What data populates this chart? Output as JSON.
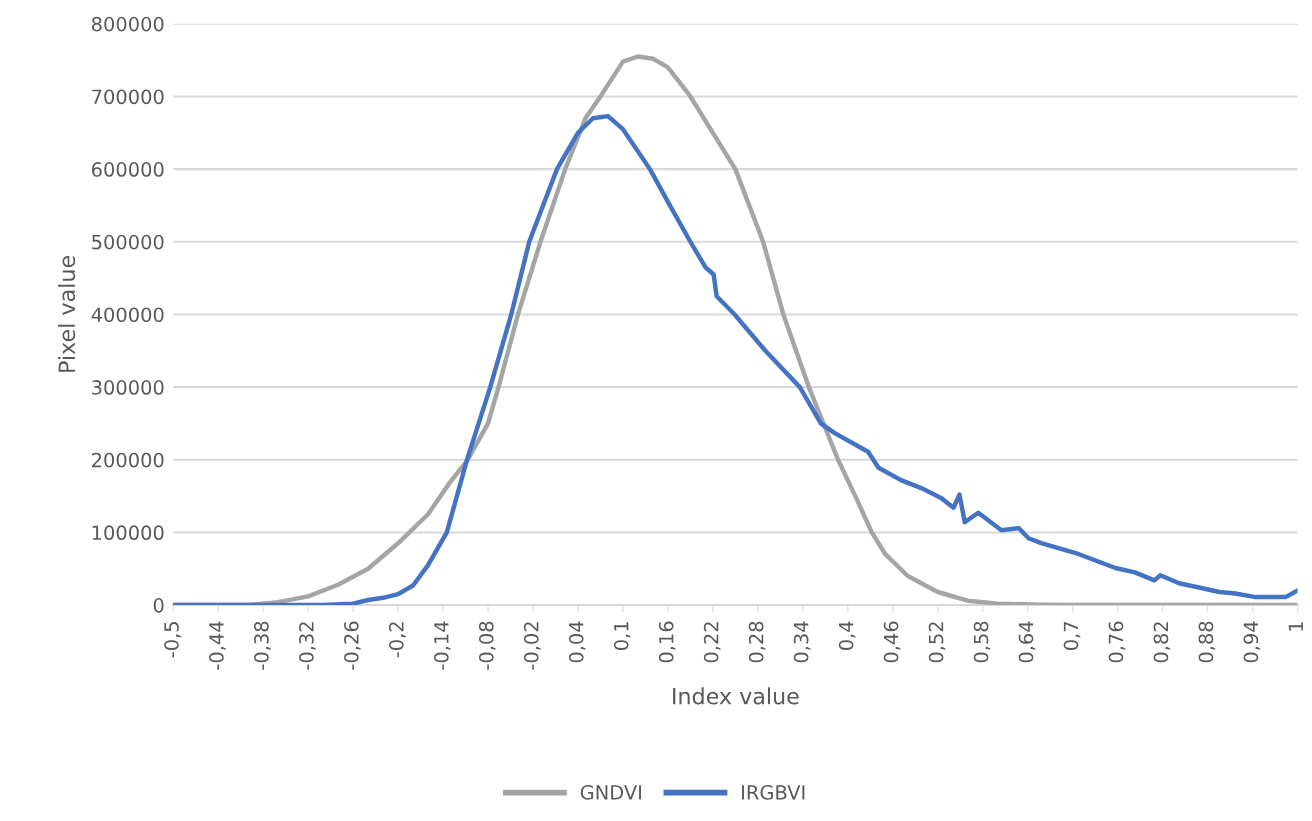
{
  "chart_data": {
    "type": "line",
    "xlabel": "Index value",
    "ylabel": "Pixel value",
    "xlim": [
      -0.5,
      1
    ],
    "ylim": [
      0,
      800000
    ],
    "xticks": [
      {
        "value": -0.5,
        "label": "-0,5"
      },
      {
        "value": -0.44,
        "label": "-0,44"
      },
      {
        "value": -0.38,
        "label": "-0,38"
      },
      {
        "value": -0.32,
        "label": "-0,32"
      },
      {
        "value": -0.26,
        "label": "-0,26"
      },
      {
        "value": -0.2,
        "label": "-0,2"
      },
      {
        "value": -0.14,
        "label": "-0,14"
      },
      {
        "value": -0.08,
        "label": "-0,08"
      },
      {
        "value": -0.02,
        "label": "-0,02"
      },
      {
        "value": 0.04,
        "label": "0,04"
      },
      {
        "value": 0.1,
        "label": "0,1"
      },
      {
        "value": 0.16,
        "label": "0,16"
      },
      {
        "value": 0.22,
        "label": "0,22"
      },
      {
        "value": 0.28,
        "label": "0,28"
      },
      {
        "value": 0.34,
        "label": "0,34"
      },
      {
        "value": 0.4,
        "label": "0,4"
      },
      {
        "value": 0.46,
        "label": "0,46"
      },
      {
        "value": 0.52,
        "label": "0,52"
      },
      {
        "value": 0.58,
        "label": "0,58"
      },
      {
        "value": 0.64,
        "label": "0,64"
      },
      {
        "value": 0.7,
        "label": "0,7"
      },
      {
        "value": 0.76,
        "label": "0,76"
      },
      {
        "value": 0.82,
        "label": "0,82"
      },
      {
        "value": 0.88,
        "label": "0,88"
      },
      {
        "value": 0.94,
        "label": "0,94"
      },
      {
        "value": 1,
        "label": "1"
      }
    ],
    "yticks": [
      0,
      100000,
      200000,
      300000,
      400000,
      500000,
      600000,
      700000,
      800000
    ],
    "grid": "y",
    "legend": "bottom",
    "marker": "none",
    "line_style": "solid",
    "series": [
      {
        "name": "GNDVI",
        "color": "#a5a5a5",
        "x": [
          -0.5,
          -0.4,
          -0.36,
          -0.32,
          -0.28,
          -0.24,
          -0.2,
          -0.16,
          -0.13,
          -0.107,
          -0.08,
          -0.066,
          -0.04,
          -0.01,
          0.023,
          0.05,
          0.07,
          0.1,
          0.12,
          0.14,
          0.16,
          0.19,
          0.22,
          0.25,
          0.287,
          0.314,
          0.348,
          0.387,
          0.41,
          0.432,
          0.45,
          0.48,
          0.52,
          0.56,
          0.6,
          0.66,
          0.7,
          1.0
        ],
        "values": [
          0,
          0,
          4000,
          12000,
          28000,
          50000,
          85000,
          125000,
          170000,
          200000,
          250000,
          300000,
          400000,
          500000,
          600000,
          670000,
          700000,
          748000,
          755000,
          752000,
          740000,
          700000,
          650000,
          600000,
          500000,
          400000,
          300000,
          200000,
          150000,
          100000,
          70000,
          40000,
          18000,
          6000,
          2000,
          500,
          0,
          0
        ]
      },
      {
        "name": "IRGBVI",
        "color": "#4472c4",
        "x": [
          -0.5,
          -0.3,
          -0.26,
          -0.24,
          -0.22,
          -0.2,
          -0.18,
          -0.16,
          -0.135,
          -0.108,
          -0.077,
          -0.049,
          -0.025,
          0.012,
          0.04,
          0.06,
          0.08,
          0.1,
          0.136,
          0.16,
          0.19,
          0.21,
          0.221,
          0.225,
          0.249,
          0.29,
          0.336,
          0.364,
          0.382,
          0.427,
          0.441,
          0.471,
          0.498,
          0.525,
          0.541,
          0.549,
          0.556,
          0.574,
          0.605,
          0.628,
          0.641,
          0.659,
          0.703,
          0.757,
          0.783,
          0.809,
          0.817,
          0.842,
          0.896,
          0.917,
          0.944,
          0.984,
          1.0
        ],
        "values": [
          0,
          0,
          2000,
          7000,
          10000,
          15000,
          27000,
          55000,
          100000,
          200000,
          300000,
          400000,
          500000,
          600000,
          650000,
          670000,
          673000,
          655000,
          600000,
          555000,
          500000,
          465000,
          455000,
          425000,
          400000,
          350000,
          300000,
          250000,
          237000,
          211000,
          189000,
          172000,
          161000,
          147000,
          134000,
          152000,
          114000,
          127000,
          103000,
          106000,
          92000,
          85000,
          72000,
          51000,
          45000,
          34000,
          41000,
          30000,
          18000,
          16000,
          11000,
          11000,
          20000
        ]
      }
    ]
  }
}
